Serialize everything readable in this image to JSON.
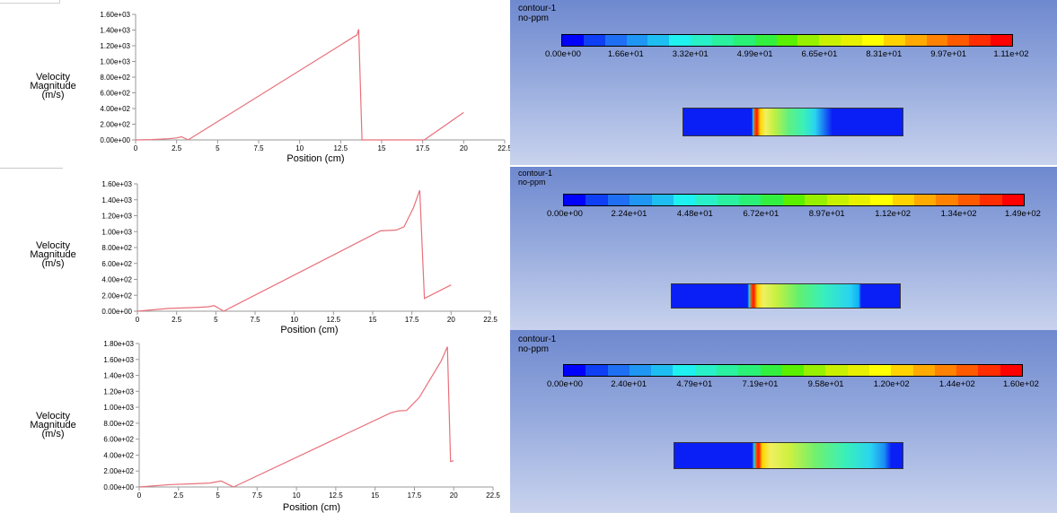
{
  "plots": [
    {
      "ylabel": [
        "Velocity",
        "Magnitude",
        "(m/s)"
      ],
      "xlabel": "Position (cm)",
      "yticks": [
        "0.00e+00",
        "2.00e+02",
        "4.00e+02",
        "6.00e+02",
        "8.00e+02",
        "1.00e+03",
        "1.20e+03",
        "1.40e+03",
        "1.60e+03"
      ],
      "xticks": [
        "0",
        "2.5",
        "5",
        "7.5",
        "10",
        "12.5",
        "15",
        "17.5",
        "20",
        "22.5"
      ]
    },
    {
      "ylabel": [
        "Velocity",
        "Magnitude",
        "(m/s)"
      ],
      "xlabel": "Position (cm)",
      "yticks": [
        "0.00e+00",
        "2.00e+02",
        "4.00e+02",
        "6.00e+02",
        "8.00e+02",
        "1.00e+03",
        "1.20e+03",
        "1.40e+03",
        "1.60e+03"
      ],
      "xticks": [
        "0",
        "2.5",
        "5",
        "7.5",
        "10",
        "12.5",
        "15",
        "17.5",
        "20",
        "22.5"
      ]
    },
    {
      "ylabel": [
        "Velocity",
        "Magnitude",
        "(m/s)"
      ],
      "xlabel": "Position (cm)",
      "yticks": [
        "0.00e+00",
        "2.00e+02",
        "4.00e+02",
        "6.00e+02",
        "8.00e+02",
        "1.00e+03",
        "1.20e+03",
        "1.40e+03",
        "1.60e+03",
        "1.80e+03"
      ],
      "xticks": [
        "0",
        "2.5",
        "5",
        "7.5",
        "10",
        "12.5",
        "15",
        "17.5",
        "20",
        "22.5"
      ]
    }
  ],
  "chart_data": [
    {
      "type": "line",
      "xlabel": "Position (cm)",
      "ylabel": "Velocity Magnitude (m/s)",
      "xlim": [
        0,
        22.5
      ],
      "ylim": [
        0,
        1600
      ],
      "grid": false,
      "series": [
        {
          "color": "#e8707a",
          "x": [
            0,
            1,
            2,
            2.5,
            2.8,
            3.2,
            13.5,
            13.6,
            13.8,
            14,
            17.6,
            20
          ],
          "y": [
            0,
            5,
            15,
            25,
            40,
            0,
            1340,
            1410,
            0,
            0,
            0,
            350
          ]
        }
      ]
    },
    {
      "type": "line",
      "xlabel": "Position (cm)",
      "ylabel": "Velocity Magnitude (m/s)",
      "xlim": [
        0,
        22.5
      ],
      "ylim": [
        0,
        1600
      ],
      "grid": false,
      "series": [
        {
          "color": "#e8707a",
          "x": [
            0,
            2,
            3.5,
            4.5,
            4.9,
            5.5,
            15.5,
            16.5,
            17,
            17.6,
            18,
            18.3,
            20
          ],
          "y": [
            0,
            35,
            45,
            55,
            70,
            0,
            1010,
            1020,
            1060,
            1300,
            1520,
            160,
            330
          ]
        }
      ]
    },
    {
      "type": "line",
      "xlabel": "Position (cm)",
      "ylabel": "Velocity Magnitude (m/s)",
      "xlim": [
        0,
        22.5
      ],
      "ylim": [
        0,
        1800
      ],
      "grid": false,
      "series": [
        {
          "color": "#e8707a",
          "x": [
            0,
            2,
            3.5,
            4.5,
            5.2,
            6,
            16,
            16.5,
            17,
            17.8,
            19.2,
            19.6,
            19.8,
            20
          ],
          "y": [
            0,
            30,
            40,
            50,
            75,
            0,
            930,
            955,
            960,
            1120,
            1580,
            1760,
            320,
            330
          ]
        }
      ]
    }
  ],
  "contours": [
    {
      "title": "contour-1",
      "subtitle": "no-ppm",
      "labels": [
        "0.00e+00",
        "1.66e+01",
        "3.32e+01",
        "4.99e+01",
        "6.65e+01",
        "8.31e+01",
        "9.97e+01",
        "1.11e+02"
      ],
      "domain_stops": [
        {
          "p": 0,
          "c": "#0a1ff5"
        },
        {
          "p": 31.2,
          "c": "#0a1ff5"
        },
        {
          "p": 31.8,
          "c": "#25d6d0"
        },
        {
          "p": 32.6,
          "c": "#ff4a00"
        },
        {
          "p": 33.6,
          "c": "#ff1a00"
        },
        {
          "p": 35,
          "c": "#ffd500"
        },
        {
          "p": 37.5,
          "c": "#f0f060"
        },
        {
          "p": 41,
          "c": "#c6f040"
        },
        {
          "p": 48,
          "c": "#60f080"
        },
        {
          "p": 55,
          "c": "#39f0b9"
        },
        {
          "p": 60,
          "c": "#2ad4f0"
        },
        {
          "p": 68,
          "c": "#0a1ff5"
        },
        {
          "p": 100,
          "c": "#0a1ff5"
        }
      ]
    },
    {
      "title": "contour-1",
      "subtitle": "no-ppm",
      "labels": [
        "0.00e+00",
        "2.24e+01",
        "4.48e+01",
        "6.72e+01",
        "8.97e+01",
        "1.12e+02",
        "1.34e+02",
        "1.49e+02"
      ],
      "domain_stops": [
        {
          "p": 0,
          "c": "#0a1ff5"
        },
        {
          "p": 33.2,
          "c": "#0a1ff5"
        },
        {
          "p": 34,
          "c": "#25d6d0"
        },
        {
          "p": 35,
          "c": "#ff4a00"
        },
        {
          "p": 36,
          "c": "#ff1a00"
        },
        {
          "p": 37.5,
          "c": "#ffd500"
        },
        {
          "p": 40,
          "c": "#f0f060"
        },
        {
          "p": 46,
          "c": "#c6f040"
        },
        {
          "p": 56,
          "c": "#60f070"
        },
        {
          "p": 66,
          "c": "#39f0b9"
        },
        {
          "p": 78,
          "c": "#2ad4f0"
        },
        {
          "p": 82,
          "c": "#10b0f8"
        },
        {
          "p": 83,
          "c": "#0a1ff5"
        },
        {
          "p": 100,
          "c": "#0a1ff5"
        }
      ]
    },
    {
      "title": "contour-1",
      "subtitle": "no-ppm",
      "labels": [
        "0.00e+00",
        "2.40e+01",
        "4.79e+01",
        "7.19e+01",
        "9.58e+01",
        "1.20e+02",
        "1.44e+02",
        "1.60e+02"
      ],
      "domain_stops": [
        {
          "p": 0,
          "c": "#0a1ff5"
        },
        {
          "p": 34,
          "c": "#0a1ff5"
        },
        {
          "p": 35,
          "c": "#25d6d0"
        },
        {
          "p": 36,
          "c": "#ff4a00"
        },
        {
          "p": 37,
          "c": "#ff1a00"
        },
        {
          "p": 38.5,
          "c": "#ffd500"
        },
        {
          "p": 42,
          "c": "#f0f060"
        },
        {
          "p": 50,
          "c": "#d0f040"
        },
        {
          "p": 62,
          "c": "#70f070"
        },
        {
          "p": 75,
          "c": "#39f0b9"
        },
        {
          "p": 86,
          "c": "#2ad4f0"
        },
        {
          "p": 92,
          "c": "#1a8ef5"
        },
        {
          "p": 95,
          "c": "#0a1ff5"
        },
        {
          "p": 100,
          "c": "#0a1ff5"
        }
      ]
    }
  ],
  "colorbar": [
    "#0000ff",
    "#0f3ff4",
    "#1f6ff4",
    "#1f96f4",
    "#1fbef2",
    "#1ff0f0",
    "#2af0c8",
    "#2af0a0",
    "#2af078",
    "#33f040",
    "#5af000",
    "#96f000",
    "#c8f000",
    "#e6f000",
    "#ffff00",
    "#ffd200",
    "#ffaa00",
    "#ff8200",
    "#ff5a00",
    "#ff2d00",
    "#ff0000"
  ]
}
